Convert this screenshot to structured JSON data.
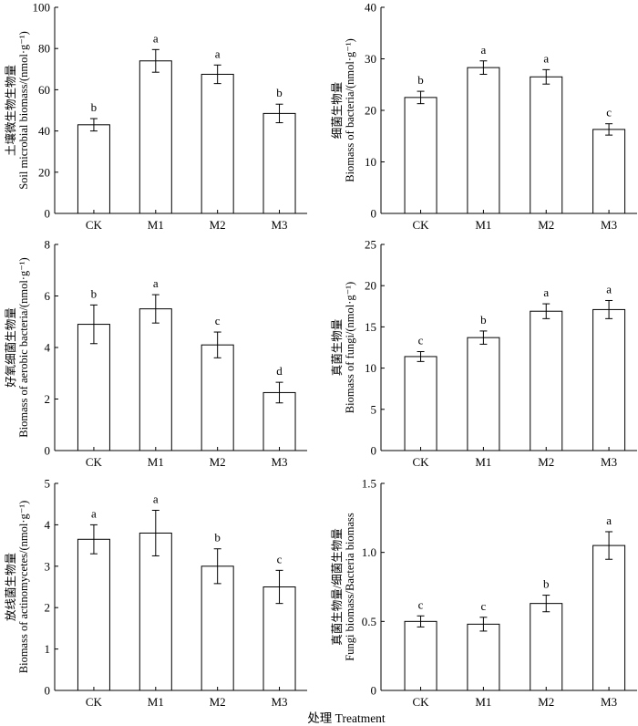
{
  "figure": {
    "xlabel": "处理 Treatment"
  },
  "chart_data": [
    {
      "type": "bar",
      "ylabel_cn": "土壤微生物生物量",
      "ylabel_en": "Soil microbial biomass/(nmol·g⁻¹)",
      "categories": [
        "CK",
        "M1",
        "M2",
        "M3"
      ],
      "values": [
        43,
        74,
        67.5,
        48.5
      ],
      "errors": [
        3,
        5.5,
        4.5,
        4.5
      ],
      "significance": [
        "b",
        "a",
        "a",
        "b"
      ],
      "ylim": [
        0,
        100
      ],
      "yticks": [
        0,
        20,
        40,
        60,
        80,
        100
      ],
      "ytick_labels": [
        "0",
        "20",
        "40",
        "60",
        "80",
        "100"
      ]
    },
    {
      "type": "bar",
      "ylabel_cn": "细菌生物量",
      "ylabel_en": "Biomass of bacteria/(nmol·g⁻¹)",
      "categories": [
        "CK",
        "M1",
        "M2",
        "M3"
      ],
      "values": [
        22.5,
        28.3,
        26.5,
        16.3
      ],
      "errors": [
        1.2,
        1.3,
        1.4,
        1.1
      ],
      "significance": [
        "b",
        "a",
        "a",
        "c"
      ],
      "ylim": [
        0,
        40
      ],
      "yticks": [
        0,
        10,
        20,
        30,
        40
      ],
      "ytick_labels": [
        "0",
        "10",
        "20",
        "30",
        "40"
      ]
    },
    {
      "type": "bar",
      "ylabel_cn": "好氧细菌生物量",
      "ylabel_en": "Biomass of aerobic bacteria/(nmol·g⁻¹)",
      "categories": [
        "CK",
        "M1",
        "M2",
        "M3"
      ],
      "values": [
        4.9,
        5.5,
        4.1,
        2.25
      ],
      "errors": [
        0.75,
        0.55,
        0.5,
        0.4
      ],
      "significance": [
        "b",
        "a",
        "c",
        "d"
      ],
      "ylim": [
        0,
        8
      ],
      "yticks": [
        0,
        2,
        4,
        6,
        8
      ],
      "ytick_labels": [
        "0",
        "2",
        "4",
        "6",
        "8"
      ]
    },
    {
      "type": "bar",
      "ylabel_cn": "真菌生物量",
      "ylabel_en": "Biomass of fungi/(nmol·g⁻¹)",
      "categories": [
        "CK",
        "M1",
        "M2",
        "M3"
      ],
      "values": [
        11.4,
        13.7,
        16.9,
        17.1
      ],
      "errors": [
        0.6,
        0.8,
        0.9,
        1.1
      ],
      "significance": [
        "c",
        "b",
        "a",
        "a"
      ],
      "ylim": [
        0,
        25
      ],
      "yticks": [
        0,
        5,
        10,
        15,
        20,
        25
      ],
      "ytick_labels": [
        "0",
        "5",
        "10",
        "15",
        "20",
        "25"
      ]
    },
    {
      "type": "bar",
      "ylabel_cn": "放线菌生物量",
      "ylabel_en": "Biomass of actinomycetes/(nmol·g⁻¹)",
      "categories": [
        "CK",
        "M1",
        "M2",
        "M3"
      ],
      "values": [
        3.65,
        3.8,
        3.0,
        2.5
      ],
      "errors": [
        0.35,
        0.55,
        0.42,
        0.4
      ],
      "significance": [
        "a",
        "a",
        "b",
        "c"
      ],
      "ylim": [
        0,
        5
      ],
      "yticks": [
        0,
        1,
        2,
        3,
        4,
        5
      ],
      "ytick_labels": [
        "0",
        "1",
        "2",
        "3",
        "4",
        "5"
      ]
    },
    {
      "type": "bar",
      "ylabel_cn": "真菌生物量/细菌生物量",
      "ylabel_en": "Fungi biomass/Bacteria biomass",
      "categories": [
        "CK",
        "M1",
        "M2",
        "M3"
      ],
      "values": [
        0.5,
        0.48,
        0.63,
        1.05
      ],
      "errors": [
        0.04,
        0.05,
        0.06,
        0.1
      ],
      "significance": [
        "c",
        "c",
        "b",
        "a"
      ],
      "ylim": [
        0,
        1.5
      ],
      "yticks": [
        0,
        0.5,
        1.0,
        1.5
      ],
      "ytick_labels": [
        "0",
        "0.5",
        "1.0",
        "1.5"
      ]
    }
  ]
}
